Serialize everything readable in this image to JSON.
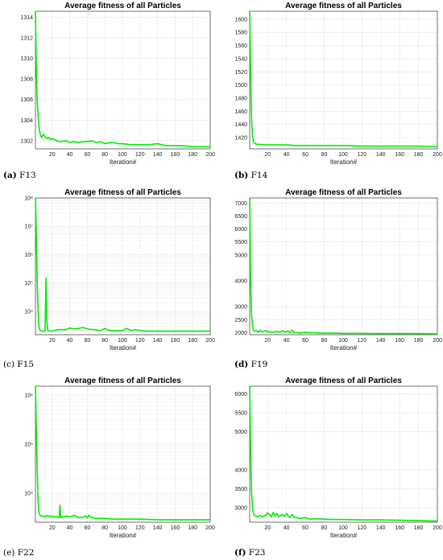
{
  "colors": {
    "line": "#00ee00",
    "grid": "#e6e6e6",
    "axis": "#333333"
  },
  "chart_data": [
    {
      "id": "F13",
      "type": "line",
      "scale": "linear",
      "title": "Average fitness of all Particles",
      "xlabel": "Iteration#",
      "caption_tag": "(a)",
      "caption_text": " F13",
      "xlim": [
        1,
        200
      ],
      "ylim": [
        1301.2,
        1314.6
      ],
      "xticks": [
        20,
        40,
        60,
        80,
        100,
        120,
        140,
        160,
        180,
        200
      ],
      "yticks": [
        1302,
        1304,
        1306,
        1308,
        1310,
        1312,
        1314
      ],
      "x": [
        1,
        2,
        3,
        4,
        5,
        6,
        7,
        8,
        10,
        12,
        14,
        16,
        18,
        20,
        25,
        30,
        35,
        40,
        45,
        50,
        55,
        60,
        65,
        70,
        75,
        80,
        85,
        90,
        95,
        100,
        110,
        120,
        130,
        140,
        150,
        160,
        170,
        180,
        190,
        200
      ],
      "y": [
        1314.6,
        1309.0,
        1306.0,
        1304.4,
        1303.4,
        1302.8,
        1302.5,
        1302.3,
        1302.6,
        1302.4,
        1302.2,
        1302.3,
        1302.1,
        1302.2,
        1302.0,
        1301.9,
        1302.0,
        1301.8,
        1301.9,
        1301.8,
        1301.9,
        1301.9,
        1302.0,
        1301.8,
        1301.9,
        1301.7,
        1301.8,
        1301.8,
        1301.7,
        1301.7,
        1301.6,
        1301.6,
        1301.6,
        1301.7,
        1301.5,
        1301.5,
        1301.5,
        1301.4,
        1301.4,
        1301.4
      ]
    },
    {
      "id": "F14",
      "type": "line",
      "scale": "linear",
      "title": "Average fitness of all Particles",
      "xlabel": "Iteration#",
      "caption_tag": "(b)",
      "caption_text": " F14",
      "xlim": [
        1,
        200
      ],
      "ylim": [
        1403,
        1612
      ],
      "xticks": [
        20,
        40,
        60,
        80,
        100,
        120,
        140,
        160,
        180,
        200
      ],
      "yticks": [
        1420,
        1440,
        1460,
        1480,
        1500,
        1520,
        1540,
        1560,
        1580,
        1600
      ],
      "x": [
        1,
        2,
        3,
        4,
        5,
        6,
        7,
        8,
        10,
        15,
        20,
        30,
        40,
        50,
        60,
        80,
        100,
        120,
        140,
        160,
        180,
        200
      ],
      "y": [
        1612,
        1520,
        1450,
        1422,
        1414,
        1412,
        1411,
        1410,
        1410,
        1409,
        1409,
        1409,
        1409,
        1408,
        1408,
        1408,
        1408,
        1407,
        1407,
        1407,
        1407,
        1406
      ]
    },
    {
      "id": "F15",
      "type": "line",
      "scale": "log",
      "title": "Average fitness of all Particles",
      "xlabel": "Iteration#",
      "caption_tag": "(c)",
      "caption_text": " F15",
      "xlim": [
        1,
        200
      ],
      "ylim": [
        1500,
        100000000
      ],
      "xticks": [
        20,
        40,
        60,
        80,
        100,
        120,
        140,
        160,
        180,
        200
      ],
      "ytick_exps": [
        4,
        5,
        6,
        7,
        8
      ],
      "x": [
        1,
        2,
        3,
        4,
        5,
        6,
        8,
        10,
        12,
        13,
        14,
        15,
        16,
        18,
        20,
        25,
        30,
        35,
        40,
        45,
        50,
        55,
        60,
        65,
        70,
        75,
        80,
        85,
        90,
        100,
        105,
        110,
        115,
        120,
        130,
        140,
        160,
        180,
        200
      ],
      "y": [
        100000000,
        5000000,
        100000,
        10000,
        3000,
        2200,
        2000,
        2000,
        2100,
        150000,
        5000,
        2100,
        2000,
        2000,
        2000,
        2200,
        2300,
        2200,
        2600,
        2400,
        2500,
        2700,
        2400,
        2300,
        2200,
        2100,
        2500,
        2100,
        2100,
        2100,
        2500,
        2100,
        2300,
        2100,
        2000,
        2000,
        2000,
        2000,
        2000
      ]
    },
    {
      "id": "F19",
      "type": "line",
      "scale": "linear",
      "title": "Average fitness of all Particles",
      "xlabel": "Iteration#",
      "caption_tag": "(d)",
      "caption_text": " F19",
      "xlim": [
        1,
        200
      ],
      "ylim": [
        1920,
        7200
      ],
      "xticks": [
        20,
        40,
        60,
        80,
        100,
        120,
        140,
        160,
        180,
        200
      ],
      "yticks": [
        2000,
        2500,
        3000,
        4000,
        5000,
        5500,
        6000,
        6500,
        7000
      ],
      "x": [
        1,
        2,
        3,
        4,
        5,
        6,
        8,
        10,
        12,
        14,
        16,
        18,
        20,
        22,
        25,
        28,
        30,
        33,
        36,
        38,
        40,
        42,
        44,
        46,
        48,
        50,
        55,
        60,
        65,
        70,
        80,
        90,
        100,
        120,
        140,
        160,
        180,
        200
      ],
      "y": [
        7200,
        4000,
        2700,
        2250,
        2100,
        2050,
        2080,
        2020,
        2090,
        2030,
        2050,
        2080,
        2020,
        2040,
        2010,
        2030,
        2050,
        2010,
        2080,
        2020,
        2040,
        2060,
        2000,
        2100,
        2010,
        2000,
        1990,
        2010,
        2000,
        1990,
        1980,
        1980,
        1970,
        1970,
        1960,
        1960,
        1960,
        1950
      ]
    },
    {
      "id": "F22",
      "type": "line",
      "scale": "log",
      "title": "Average fitness of all Particles",
      "xlabel": "Iteration#",
      "caption_tag": "(e)",
      "caption_text": " F22",
      "xlim": [
        1,
        200
      ],
      "ylim": [
        2600,
        1500000
      ],
      "xticks": [
        20,
        40,
        60,
        80,
        100,
        120,
        140,
        160,
        180,
        200
      ],
      "ytick_exps": [
        4,
        5,
        6
      ],
      "x": [
        1,
        2,
        3,
        4,
        5,
        6,
        8,
        10,
        12,
        15,
        18,
        20,
        22,
        25,
        28,
        29,
        30,
        31,
        33,
        36,
        40,
        45,
        50,
        55,
        58,
        60,
        62,
        65,
        70,
        80,
        90,
        100,
        120,
        140,
        160,
        180,
        200
      ],
      "y": [
        1500000,
        200000,
        30000,
        7000,
        4200,
        3600,
        3400,
        3500,
        3300,
        3600,
        3300,
        3500,
        3300,
        3400,
        3200,
        5800,
        3200,
        3400,
        3300,
        3500,
        3300,
        3600,
        3200,
        3300,
        3500,
        3200,
        3600,
        3200,
        3100,
        3100,
        3000,
        3000,
        3000,
        2900,
        2900,
        2900,
        2900
      ]
    },
    {
      "id": "F23",
      "type": "line",
      "scale": "linear",
      "title": "Average fitness of all Particles",
      "xlabel": "Iteration#",
      "caption_tag": "(f)",
      "caption_text": " F23",
      "xlim": [
        1,
        200
      ],
      "ylim": [
        2620,
        6200
      ],
      "xticks": [
        20,
        40,
        60,
        80,
        100,
        120,
        140,
        160,
        180,
        200
      ],
      "yticks": [
        3000,
        3500,
        4000,
        5000,
        5500,
        6000
      ],
      "x": [
        1,
        2,
        3,
        4,
        5,
        6,
        8,
        10,
        12,
        14,
        16,
        18,
        20,
        22,
        24,
        26,
        28,
        30,
        32,
        34,
        36,
        38,
        40,
        42,
        44,
        46,
        48,
        50,
        55,
        60,
        65,
        70,
        80,
        90,
        100,
        120,
        140,
        160,
        180,
        200
      ],
      "y": [
        6200,
        4500,
        3400,
        3000,
        2850,
        2800,
        2780,
        2760,
        2800,
        2750,
        2780,
        2800,
        2870,
        2820,
        2760,
        2880,
        2790,
        2850,
        2760,
        2800,
        2820,
        2760,
        2850,
        2780,
        2740,
        2820,
        2760,
        2740,
        2720,
        2740,
        2700,
        2710,
        2700,
        2690,
        2690,
        2680,
        2680,
        2670,
        2660,
        2650
      ]
    }
  ]
}
